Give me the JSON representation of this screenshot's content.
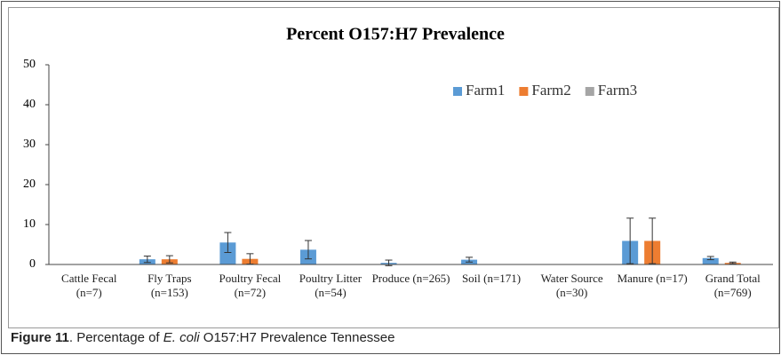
{
  "chart_data": {
    "type": "bar",
    "title": "Percent O157:H7 Prevalence",
    "categories": [
      "Cattle Fecal (n=7)",
      "Fly Traps (n=153)",
      "Poultry Fecal (n=72)",
      "Poultry Litter (n=54)",
      "Produce (n=265)",
      "Soil (n=171)",
      "Water Source (n=30)",
      "Manure (n=17)",
      "Grand Total (n=769)"
    ],
    "series": [
      {
        "name": "Farm1",
        "color": "#5b9bd5",
        "values": [
          0,
          1.3,
          5.5,
          3.7,
          0.4,
          1.2,
          0,
          5.9,
          1.6
        ],
        "errors": [
          null,
          0.8,
          2.5,
          2.3,
          0.7,
          0.6,
          null,
          5.7,
          0.4
        ]
      },
      {
        "name": "Farm2",
        "color": "#ed7d31",
        "values": [
          0,
          1.3,
          1.4,
          0,
          0,
          0,
          0,
          5.9,
          0.4
        ],
        "errors": [
          null,
          0.9,
          1.3,
          null,
          null,
          null,
          null,
          5.7,
          0.2
        ]
      },
      {
        "name": "Farm3",
        "color": "#a5a5a5",
        "values": [
          0,
          0,
          0,
          0,
          0,
          0,
          0,
          0,
          0
        ],
        "errors": [
          null,
          null,
          null,
          null,
          null,
          null,
          null,
          null,
          null
        ]
      }
    ],
    "ylim": [
      0,
      50
    ],
    "yticks": [
      0,
      10,
      20,
      30,
      40,
      50
    ],
    "grid": false,
    "legend": "top-right"
  },
  "caption": {
    "label": "Figure 11",
    "before": ". Percentage of ",
    "italic": "E. coli",
    "after": " O157:H7 Prevalence Tennessee"
  }
}
